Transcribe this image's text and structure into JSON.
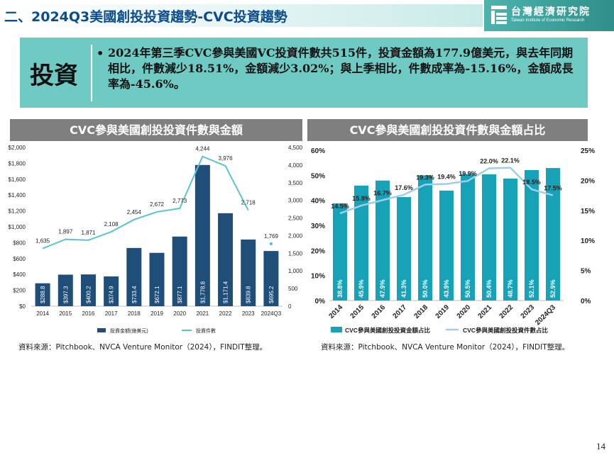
{
  "page": {
    "title": "二、2024Q3美國創投投資趨勢-CVC投資趨勢",
    "logo_cn": "台灣經濟研究院",
    "logo_en": "Taiwan Institute of Economic Research",
    "page_number": "14"
  },
  "summary": {
    "tag": "投資",
    "bullet": "•",
    "text": "2024年第三季CVC參與美國VC投資件數共515件，投資金額為177.9億美元，與去年同期相比，件數減少18.51%，金額減少3.02%；與上季相比，件數成率為-15.16%，金額成長率為-45.6%。"
  },
  "chart_data": [
    {
      "type": "bar",
      "title": "CVC參與美國創投投資件數與金額",
      "categories": [
        "2014",
        "2015",
        "2016",
        "2017",
        "2018",
        "2019",
        "2020",
        "2021",
        "2022",
        "2023",
        "2024Q3"
      ],
      "series": [
        {
          "name": "投資金額(億美元)",
          "type": "bar",
          "axis": "left",
          "values": [
            288.8,
            397.3,
            400.2,
            374.9,
            733.4,
            672.1,
            877.1,
            1778.8,
            1171.4,
            839.8,
            695.2
          ],
          "labels": [
            "$288.8",
            "$397.3",
            "$400.2",
            "$374.9",
            "$733.4",
            "$672.1",
            "$877.1",
            "$1,778.8",
            "$1,171.4",
            "$839.8",
            "$695.2"
          ],
          "color": "#1f4e79"
        },
        {
          "name": "投資件數",
          "type": "line",
          "axis": "right",
          "values": [
            1635,
            1897,
            1871,
            2108,
            2454,
            2672,
            2773,
            4244,
            3976,
            2718,
            1769
          ],
          "labels": [
            "1,635",
            "1,897",
            "1,871",
            "2,108",
            "2,454",
            "2,672",
            "2,773",
            "4,244",
            "3,976",
            "2,718",
            "1,769"
          ],
          "color": "#5bc4d1"
        }
      ],
      "yleft": {
        "range": [
          0,
          2000
        ],
        "ticks": [
          0,
          200,
          400,
          600,
          800,
          1000,
          1200,
          1400,
          1600,
          1800,
          2000
        ],
        "tick_labels": [
          "$0",
          "$200",
          "$400",
          "$600",
          "$800",
          "$1,000",
          "$1,200",
          "$1,400",
          "$1,600",
          "$1,800",
          "$2,000"
        ]
      },
      "yright": {
        "range": [
          0,
          4500
        ],
        "ticks": [
          0,
          500,
          1000,
          1500,
          2000,
          2500,
          3000,
          3500,
          4000,
          4500
        ],
        "tick_labels": [
          "0",
          "500",
          "1,000",
          "1,500",
          "2,000",
          "2,500",
          "3,000",
          "3,500",
          "4,000",
          "4,500"
        ]
      },
      "grid": false,
      "legend": "bottom",
      "source": "資料來源：Pitchbook、NVCA Venture Monitor（2024），FINDIT整理。"
    },
    {
      "type": "bar",
      "title": "CVC參與美國創投投資件數與金額占比",
      "categories": [
        "2014",
        "2015",
        "2016",
        "2017",
        "2018",
        "2019",
        "2020",
        "2021",
        "2022",
        "2023",
        "2024Q3"
      ],
      "series": [
        {
          "name": "CVC參與美國創投投資金額占比",
          "type": "bar",
          "axis": "left",
          "values": [
            38.8,
            45.9,
            47.9,
            41.3,
            50.0,
            43.9,
            50.5,
            50.4,
            48.7,
            52.1,
            52.9
          ],
          "labels": [
            "38.8%",
            "45.9%",
            "47.9%",
            "41.3%",
            "50.0%",
            "43.9%",
            "50.5%",
            "50.4%",
            "48.7%",
            "52.1%",
            "52.9%"
          ],
          "color": "#17a2b8"
        },
        {
          "name": "CVC參與美國創投投資件數占比",
          "type": "line",
          "axis": "right",
          "values": [
            14.5,
            15.8,
            16.7,
            17.6,
            19.3,
            19.4,
            19.9,
            22.0,
            22.1,
            18.5,
            17.5
          ],
          "labels": [
            "14.5%",
            "15.8%",
            "16.7%",
            "17.6%",
            "19.3%",
            "19.4%",
            "19.9%",
            "22.0%",
            "22.1%",
            "18.5%",
            "17.5%"
          ],
          "color": "#9fcdea"
        }
      ],
      "yleft": {
        "range": [
          0,
          60
        ],
        "ticks": [
          0,
          10,
          20,
          30,
          40,
          50,
          60
        ],
        "tick_labels": [
          "0%",
          "10%",
          "20%",
          "30%",
          "40%",
          "50%",
          "60%"
        ]
      },
      "yright": {
        "range": [
          0,
          25
        ],
        "ticks": [
          0,
          5,
          10,
          15,
          20,
          25
        ],
        "tick_labels": [
          "0%",
          "5%",
          "10%",
          "15%",
          "20%",
          "25%"
        ]
      },
      "grid": false,
      "legend": "bottom",
      "source": "資料來源：Pitchbook、NVCA Venture Monitor（2024），FINDIT整理。"
    }
  ]
}
